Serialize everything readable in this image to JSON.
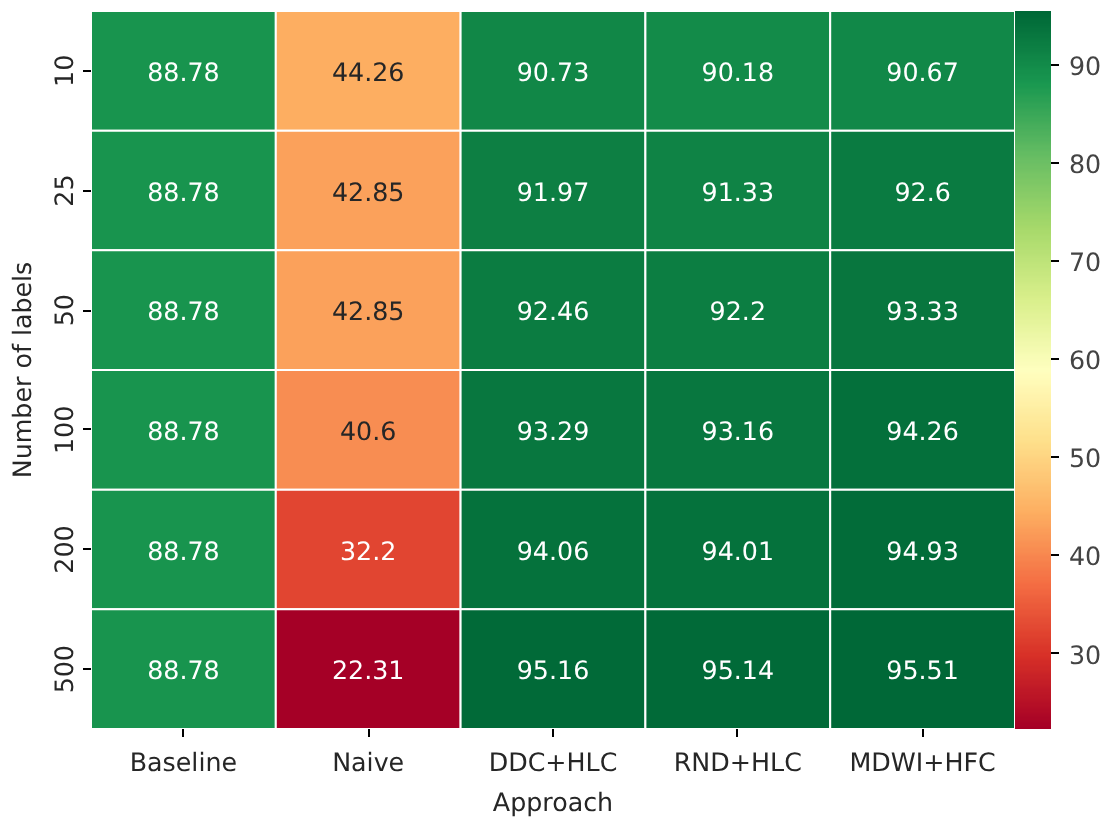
{
  "chart_data": {
    "type": "heatmap",
    "xlabel": "Approach",
    "ylabel": "Number of labels",
    "categories": [
      "Baseline",
      "Naive",
      "DDC+HLC",
      "RND+HLC",
      "MDWI+HFC"
    ],
    "y_categories": [
      "10",
      "25",
      "50",
      "100",
      "200",
      "500"
    ],
    "cells": [
      [
        88.78,
        44.26,
        90.73,
        90.18,
        90.67
      ],
      [
        88.78,
        42.85,
        91.97,
        91.33,
        92.6
      ],
      [
        88.78,
        42.85,
        92.46,
        92.2,
        93.33
      ],
      [
        88.78,
        40.6,
        93.29,
        93.16,
        94.26
      ],
      [
        88.78,
        32.2,
        94.06,
        94.01,
        94.93
      ],
      [
        88.78,
        22.31,
        95.16,
        95.14,
        95.51
      ]
    ],
    "data_labels": true,
    "clim": [
      22.31,
      95.51
    ],
    "cticks": [
      30,
      40,
      50,
      60,
      70,
      80,
      90
    ]
  }
}
